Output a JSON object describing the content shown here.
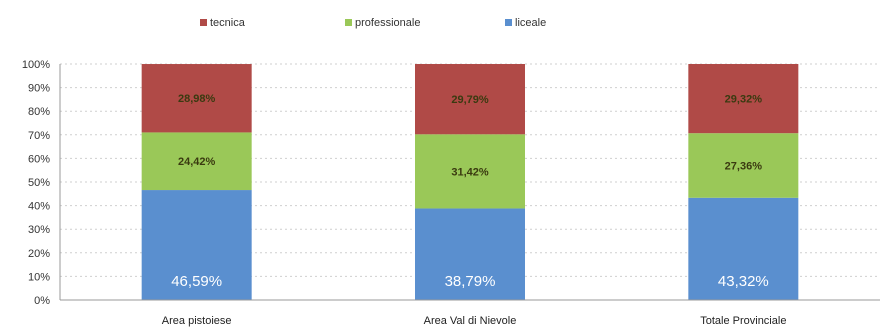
{
  "chart_data": {
    "type": "bar",
    "stacked": true,
    "categories": [
      "Area pistoiese",
      "Area  Val di Nievole",
      "Totale  Provinciale"
    ],
    "series": [
      {
        "name": "liceale",
        "color": "#5a8fcf",
        "values": [
          46.59,
          38.79,
          43.32
        ],
        "labels": [
          "46,59%",
          "38,79%",
          "43,32%"
        ]
      },
      {
        "name": "professionale",
        "color": "#9ac858",
        "values": [
          24.42,
          31.42,
          27.36
        ],
        "labels": [
          "24,42%",
          "31,42%",
          "27,36%"
        ]
      },
      {
        "name": "tecnica",
        "color": "#b04a47",
        "values": [
          28.98,
          29.79,
          29.32
        ],
        "labels": [
          "28,98%",
          "29,79%",
          "29,32%"
        ]
      }
    ],
    "legend_order": [
      "tecnica",
      "professionale",
      "liceale"
    ],
    "legend_position": "top",
    "ylim": [
      0,
      100
    ],
    "yticks": [
      "0%",
      "10%",
      "20%",
      "30%",
      "40%",
      "50%",
      "60%",
      "70%",
      "80%",
      "90%",
      "100%"
    ],
    "grid": true
  }
}
